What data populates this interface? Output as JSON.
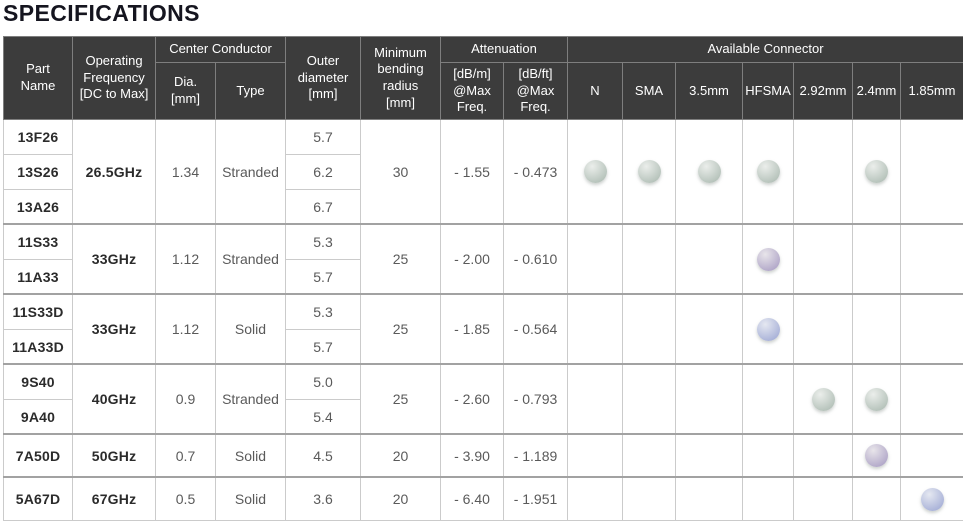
{
  "title": "SPECIFICATIONS",
  "colors": {
    "header_bg": "#3c3c3c",
    "header_text": "#ffffff",
    "header_border": "#7e7e7e",
    "body_border": "#cbcbcb",
    "group_border": "#a2a2a2",
    "part_text": "#2b2b2b",
    "value_text": "#5a5a5a",
    "title_text": "#15151f"
  },
  "dot_colors": {
    "green": [
      "#ebeeeb",
      "#b5c2ba"
    ],
    "purple": [
      "#e8e5ea",
      "#b2a8c9"
    ],
    "blue": [
      "#e5e8f1",
      "#a9b2d8"
    ]
  },
  "table": {
    "headers": {
      "part_name": "Part\nName",
      "operating_frequency": "Operating\nFrequency\n[DC to Max]",
      "center_conductor": "Center Conductor",
      "dia": "Dia.\n[mm]",
      "type": "Type",
      "outer_diameter": "Outer\ndiameter\n[mm]",
      "min_bending": "Minimum\nbending\nradius\n[mm]",
      "attenuation": "Attenuation",
      "att_dbm": "[dB/m]\n@Max\nFreq.",
      "att_dbft": "[dB/ft]\n@Max\nFreq.",
      "available_connector": "Available Connector"
    },
    "connector_columns": [
      "N",
      "SMA",
      "3.5mm",
      "HFSMA",
      "2.92mm",
      "2.4mm",
      "1.85mm"
    ],
    "groups": [
      {
        "rows": [
          {
            "part": "13F26",
            "outer": "5.7"
          },
          {
            "part": "13S26",
            "outer": "6.2"
          },
          {
            "part": "13A26",
            "outer": "6.7"
          }
        ],
        "frequency": "26.5GHz",
        "dia": "1.34",
        "type": "Stranded",
        "bending": "30",
        "att_dbm": "- 1.55",
        "att_dbft": "- 0.473",
        "connectors": {
          "N": "green",
          "SMA": "green",
          "3.5mm": "green",
          "HFSMA": "green",
          "2.4mm": "green"
        }
      },
      {
        "rows": [
          {
            "part": "11S33",
            "outer": "5.3"
          },
          {
            "part": "11A33",
            "outer": "5.7"
          }
        ],
        "frequency": "33GHz",
        "dia": "1.12",
        "type": "Stranded",
        "bending": "25",
        "att_dbm": "- 2.00",
        "att_dbft": "- 0.610",
        "connectors": {
          "HFSMA": "purple"
        }
      },
      {
        "rows": [
          {
            "part": "11S33D",
            "outer": "5.3"
          },
          {
            "part": "11A33D",
            "outer": "5.7"
          }
        ],
        "frequency": "33GHz",
        "dia": "1.12",
        "type": "Solid",
        "bending": "25",
        "att_dbm": "- 1.85",
        "att_dbft": "- 0.564",
        "connectors": {
          "HFSMA": "blue"
        }
      },
      {
        "rows": [
          {
            "part": "9S40",
            "outer": "5.0"
          },
          {
            "part": "9A40",
            "outer": "5.4"
          }
        ],
        "frequency": "40GHz",
        "dia": "0.9",
        "type": "Stranded",
        "bending": "25",
        "att_dbm": "- 2.60",
        "att_dbft": "- 0.793",
        "connectors": {
          "2.92mm": "green",
          "2.4mm": "green"
        }
      },
      {
        "rows": [
          {
            "part": "7A50D",
            "outer": "4.5"
          }
        ],
        "frequency": "50GHz",
        "dia": "0.7",
        "type": "Solid",
        "bending": "20",
        "att_dbm": "- 3.90",
        "att_dbft": "- 1.189",
        "connectors": {
          "2.4mm": "purple"
        }
      },
      {
        "rows": [
          {
            "part": "5A67D",
            "outer": "3.6"
          }
        ],
        "frequency": "67GHz",
        "dia": "0.5",
        "type": "Solid",
        "bending": "20",
        "att_dbm": "- 6.40",
        "att_dbft": "- 1.951",
        "connectors": {
          "1.85mm": "blue"
        }
      }
    ]
  }
}
